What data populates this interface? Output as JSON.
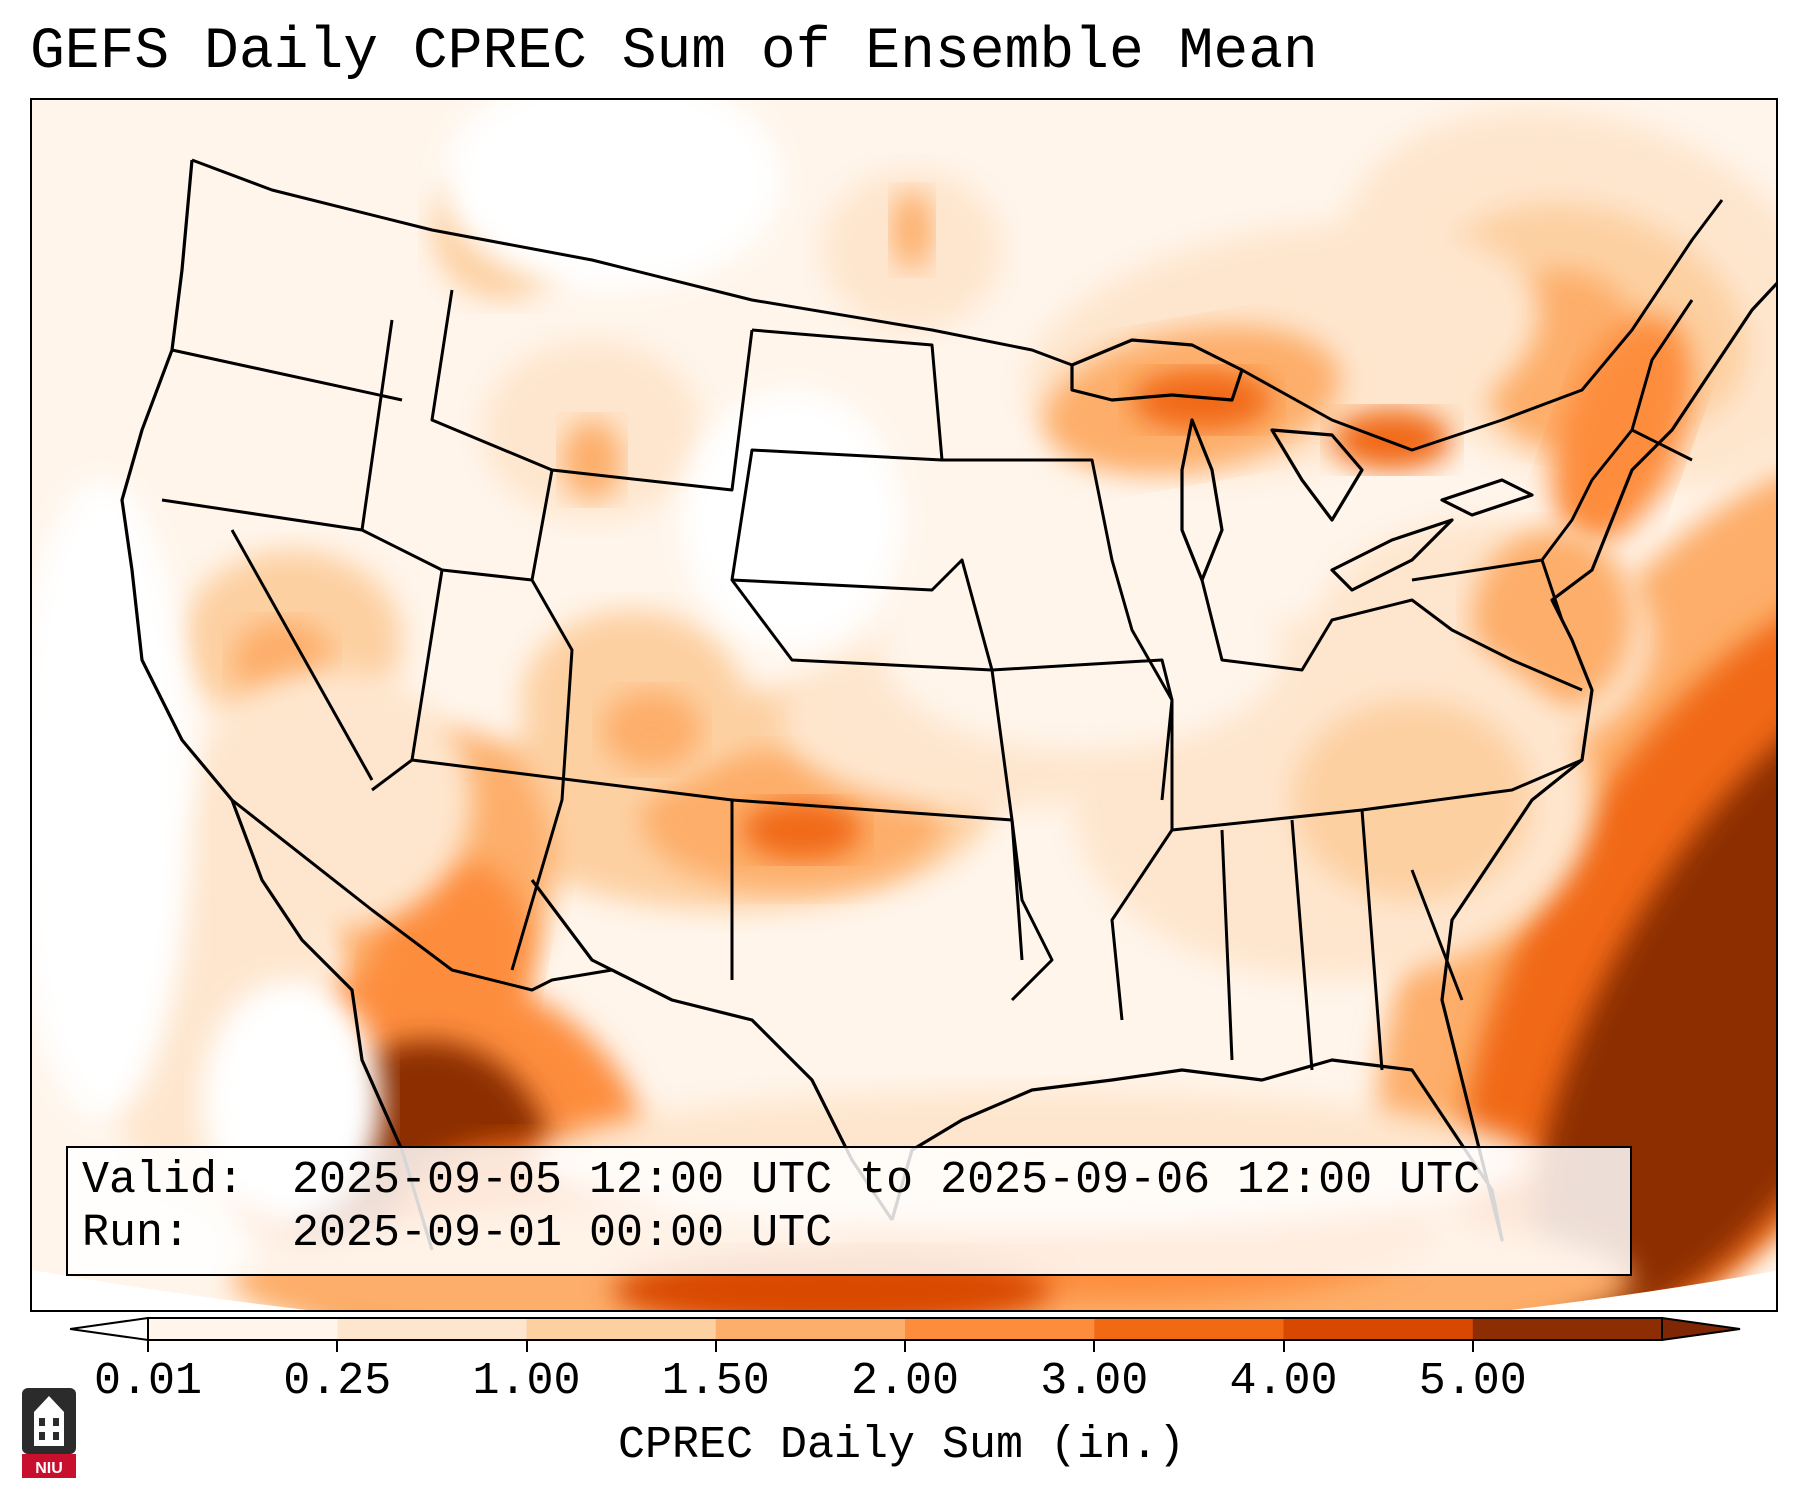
{
  "title": "GEFS Daily CPREC Sum of Ensemble Mean",
  "info": {
    "valid_label": "Valid:",
    "valid_value": "2025-09-05 12:00 UTC to 2025-09-06 12:00 UTC",
    "run_label": "Run:",
    "run_value": "2025-09-01 00:00 UTC"
  },
  "colorbar": {
    "label": "CPREC Daily Sum (in.)",
    "ticks": [
      "0.01",
      "0.25",
      "1.00",
      "1.50",
      "2.00",
      "3.00",
      "4.00",
      "5.00"
    ],
    "colors": [
      "#fff5eb",
      "#fee6ce",
      "#fdd0a2",
      "#fdae6b",
      "#fd8d3c",
      "#f16913",
      "#d94801",
      "#8c2d04"
    ],
    "extend_min_color": "#ffffff",
    "extend_max_color": "#7f2704"
  },
  "map": {
    "region": "Contiguous United States",
    "projection": "Lambert Conformal",
    "border_color": "#000000"
  },
  "logo": {
    "text": "NIU",
    "brand_color": "#c8102e"
  }
}
